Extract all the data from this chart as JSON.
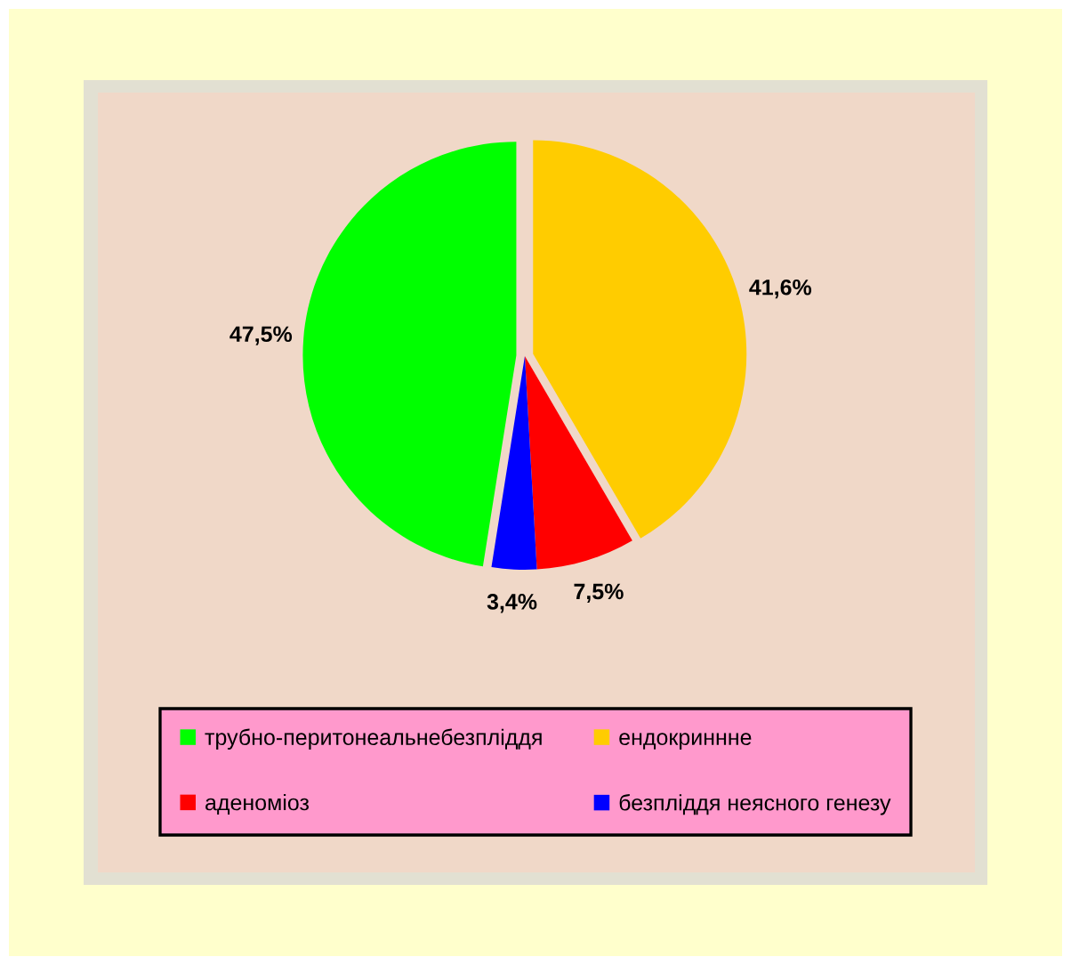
{
  "chart_data": {
    "type": "pie",
    "categories": [
      "трубно-перитонеальнебезпліддя",
      "ендокриннне",
      "аденоміоз",
      "безпліддя неясного генезу"
    ],
    "values": [
      47.5,
      41.6,
      7.5,
      3.4
    ],
    "colors": [
      "#00ff00",
      "#ffcc00",
      "#ff0000",
      "#0000ff"
    ],
    "value_labels": [
      "47,5%",
      "41,6%",
      "7,5%",
      "3,4%"
    ],
    "legend": "bottom"
  }
}
